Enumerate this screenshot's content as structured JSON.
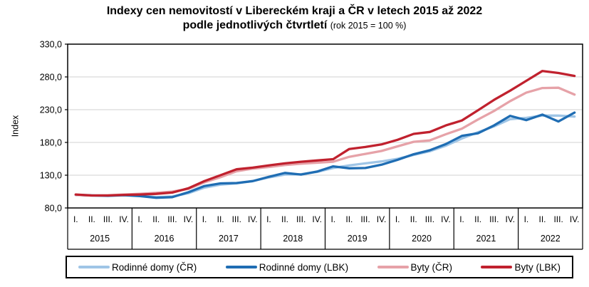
{
  "title": {
    "line1": "Indexy cen nemovitostí v Libereckém kraji a ČR v letech 2015 až 2022",
    "line2_bold": "podle jednotlivých čtvrtletí",
    "line2_note": "(rok 2015 = 100 %)"
  },
  "y_axis": {
    "title": "Index",
    "ticks": [
      "330,0",
      "280,0",
      "230,0",
      "180,0",
      "130,0",
      "80,0"
    ]
  },
  "x_axis": {
    "quarter_labels": [
      "I.",
      "II.",
      "III.",
      "IV."
    ],
    "years": [
      "2015",
      "2016",
      "2017",
      "2018",
      "2019",
      "2020",
      "2021",
      "2022"
    ]
  },
  "legend": {
    "items": [
      {
        "key": "rodinne_cr",
        "label": "Rodinné domy (ČR)",
        "color": "#9FC5E6"
      },
      {
        "key": "rodinne_lbk",
        "label": "Rodinné domy (LBK)",
        "color": "#1F6DB3"
      },
      {
        "key": "byty_cr",
        "label": "Byty (ČR)",
        "color": "#E6A2A8"
      },
      {
        "key": "byty_lbk",
        "label": "Byty (LBK)",
        "color": "#C0212E"
      }
    ]
  },
  "colors": {
    "grid": "#D9D9D9",
    "axis": "#000000",
    "background": "#FFFFFF"
  },
  "chart_data": {
    "type": "line",
    "title": "Indexy cen nemovitostí v Libereckém kraji a ČR v letech 2015 až 2022 podle jednotlivých čtvrtletí (rok 2015 = 100 %)",
    "xlabel": "",
    "ylabel": "Index",
    "ylim": [
      80,
      330
    ],
    "ytick_values": [
      330,
      280,
      230,
      180,
      130,
      80
    ],
    "gridline_values": [
      280,
      230,
      180,
      130
    ],
    "grid": true,
    "legend_position": "bottom",
    "years": [
      "2015",
      "2016",
      "2017",
      "2018",
      "2019",
      "2020",
      "2021",
      "2022"
    ],
    "quarters_per_year": [
      "I.",
      "II.",
      "III.",
      "IV."
    ],
    "series": [
      {
        "name": "Rodinné domy (ČR)",
        "key": "rodinne_cr",
        "color": "#9FC5E6",
        "values": [
          100,
          99.5,
          99,
          99.5,
          99,
          96.5,
          97.5,
          102.5,
          111,
          115.5,
          117.5,
          121,
          126.5,
          131,
          131.5,
          135,
          141,
          145,
          148,
          151,
          155,
          161,
          166.5,
          175,
          186,
          195.5,
          204.5,
          215.5,
          217.5,
          221,
          221,
          219.5
        ]
      },
      {
        "name": "Rodinné domy (LBK)",
        "key": "rodinne_lbk",
        "color": "#1F6DB3",
        "values": [
          100,
          99,
          98.5,
          99.5,
          98,
          95.5,
          96.5,
          104,
          113.5,
          117.5,
          118,
          121,
          127.5,
          133.5,
          131,
          135.5,
          143.5,
          140.5,
          141,
          146,
          153.5,
          162,
          168,
          177.5,
          190,
          194,
          206,
          220.5,
          214,
          222.5,
          212,
          225.5
        ]
      },
      {
        "name": "Byty (ČR)",
        "key": "byty_cr",
        "color": "#E6A2A8",
        "values": [
          100,
          99,
          99.5,
          100.5,
          101.5,
          103,
          105,
          109,
          119,
          127,
          136,
          140,
          142.5,
          145.5,
          147.5,
          149,
          150.5,
          158,
          162.5,
          167,
          174,
          181,
          183,
          192.5,
          201,
          215,
          228,
          243,
          256,
          263,
          263.5,
          253
        ]
      },
      {
        "name": "Byty (LBK)",
        "key": "byty_lbk",
        "color": "#C0212E",
        "values": [
          100.5,
          99,
          99,
          100,
          100.5,
          101.5,
          103.5,
          110,
          121,
          130,
          139,
          141.5,
          145,
          148,
          150.5,
          152.5,
          154.5,
          170,
          173,
          177,
          184,
          193,
          196,
          206,
          213.5,
          229,
          245,
          259,
          274,
          289,
          286,
          281.5
        ]
      }
    ]
  }
}
